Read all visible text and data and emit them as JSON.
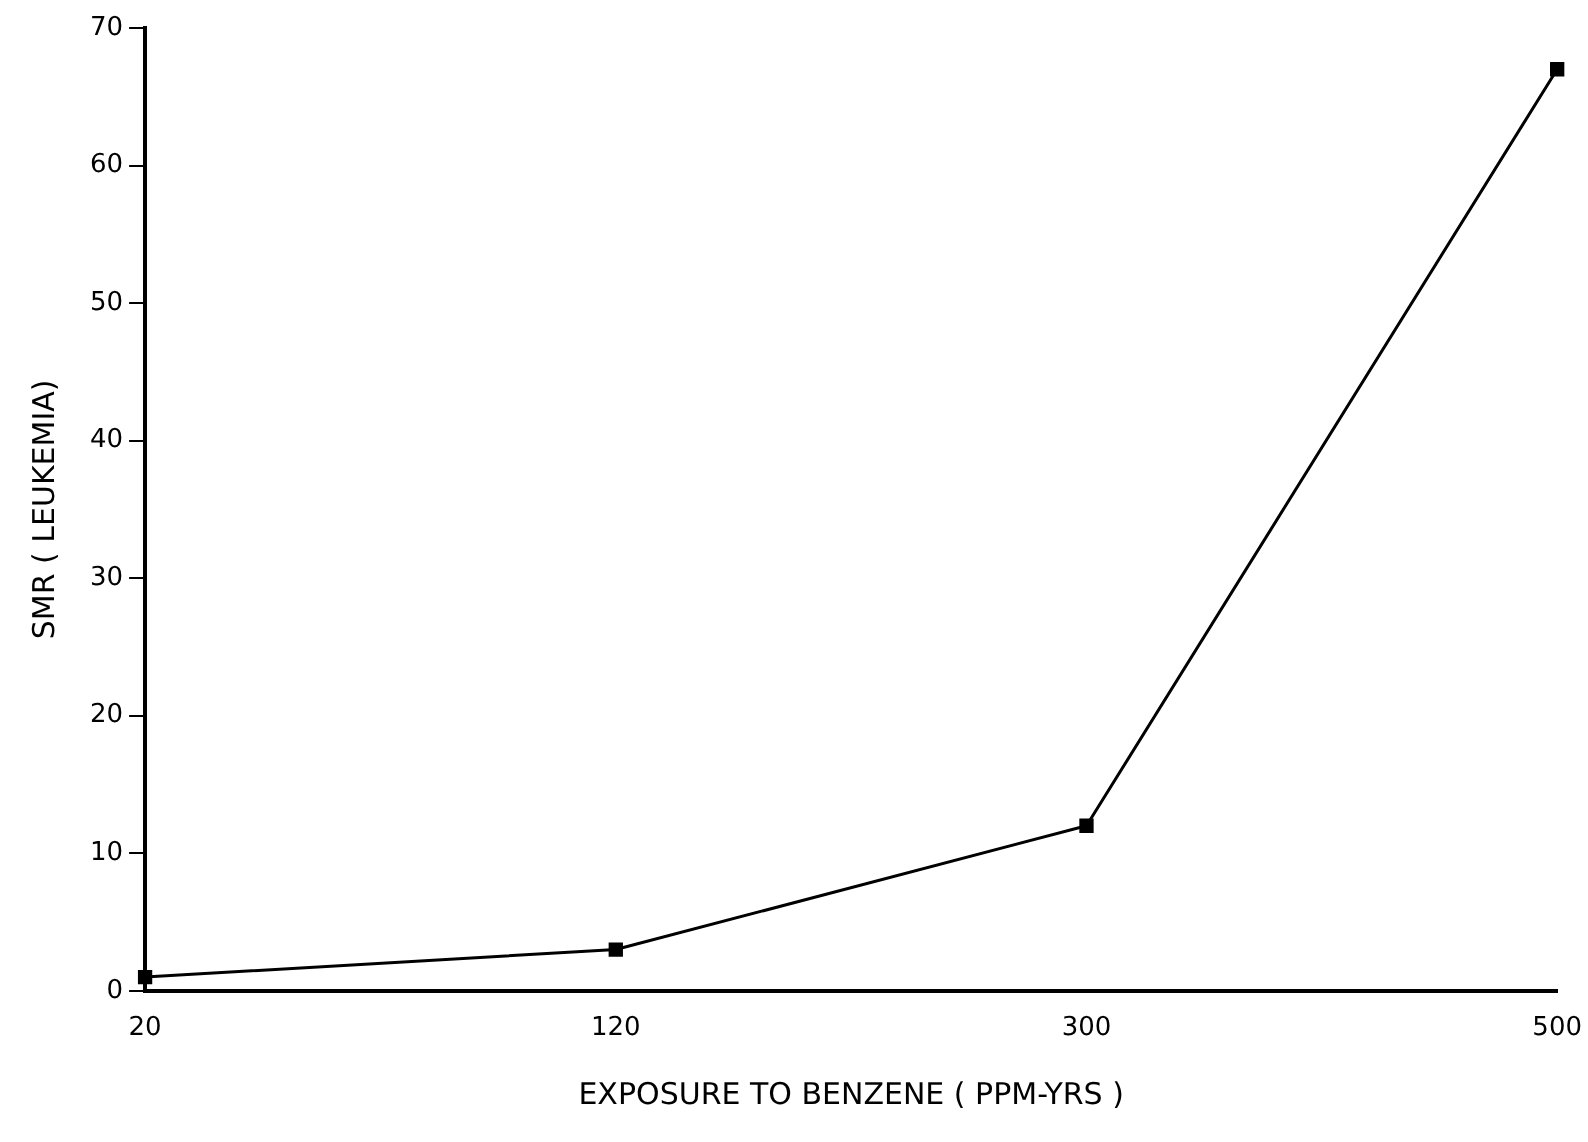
{
  "chart_data": {
    "type": "line",
    "xlabel": "EXPOSURE TO BENZENE ( PPM-YRS )",
    "ylabel": "SMR ( LEUKEMIA)",
    "categories": [
      "20",
      "120",
      "300",
      "500"
    ],
    "series": [
      {
        "color": "#000000",
        "values": [
          1,
          3,
          12,
          67
        ]
      }
    ],
    "ylim": [
      0,
      70
    ],
    "yticks": [
      0,
      10,
      20,
      30,
      40,
      50,
      60,
      70
    ],
    "grid": false,
    "legend": false,
    "marker": "square",
    "line_style": "solid"
  }
}
